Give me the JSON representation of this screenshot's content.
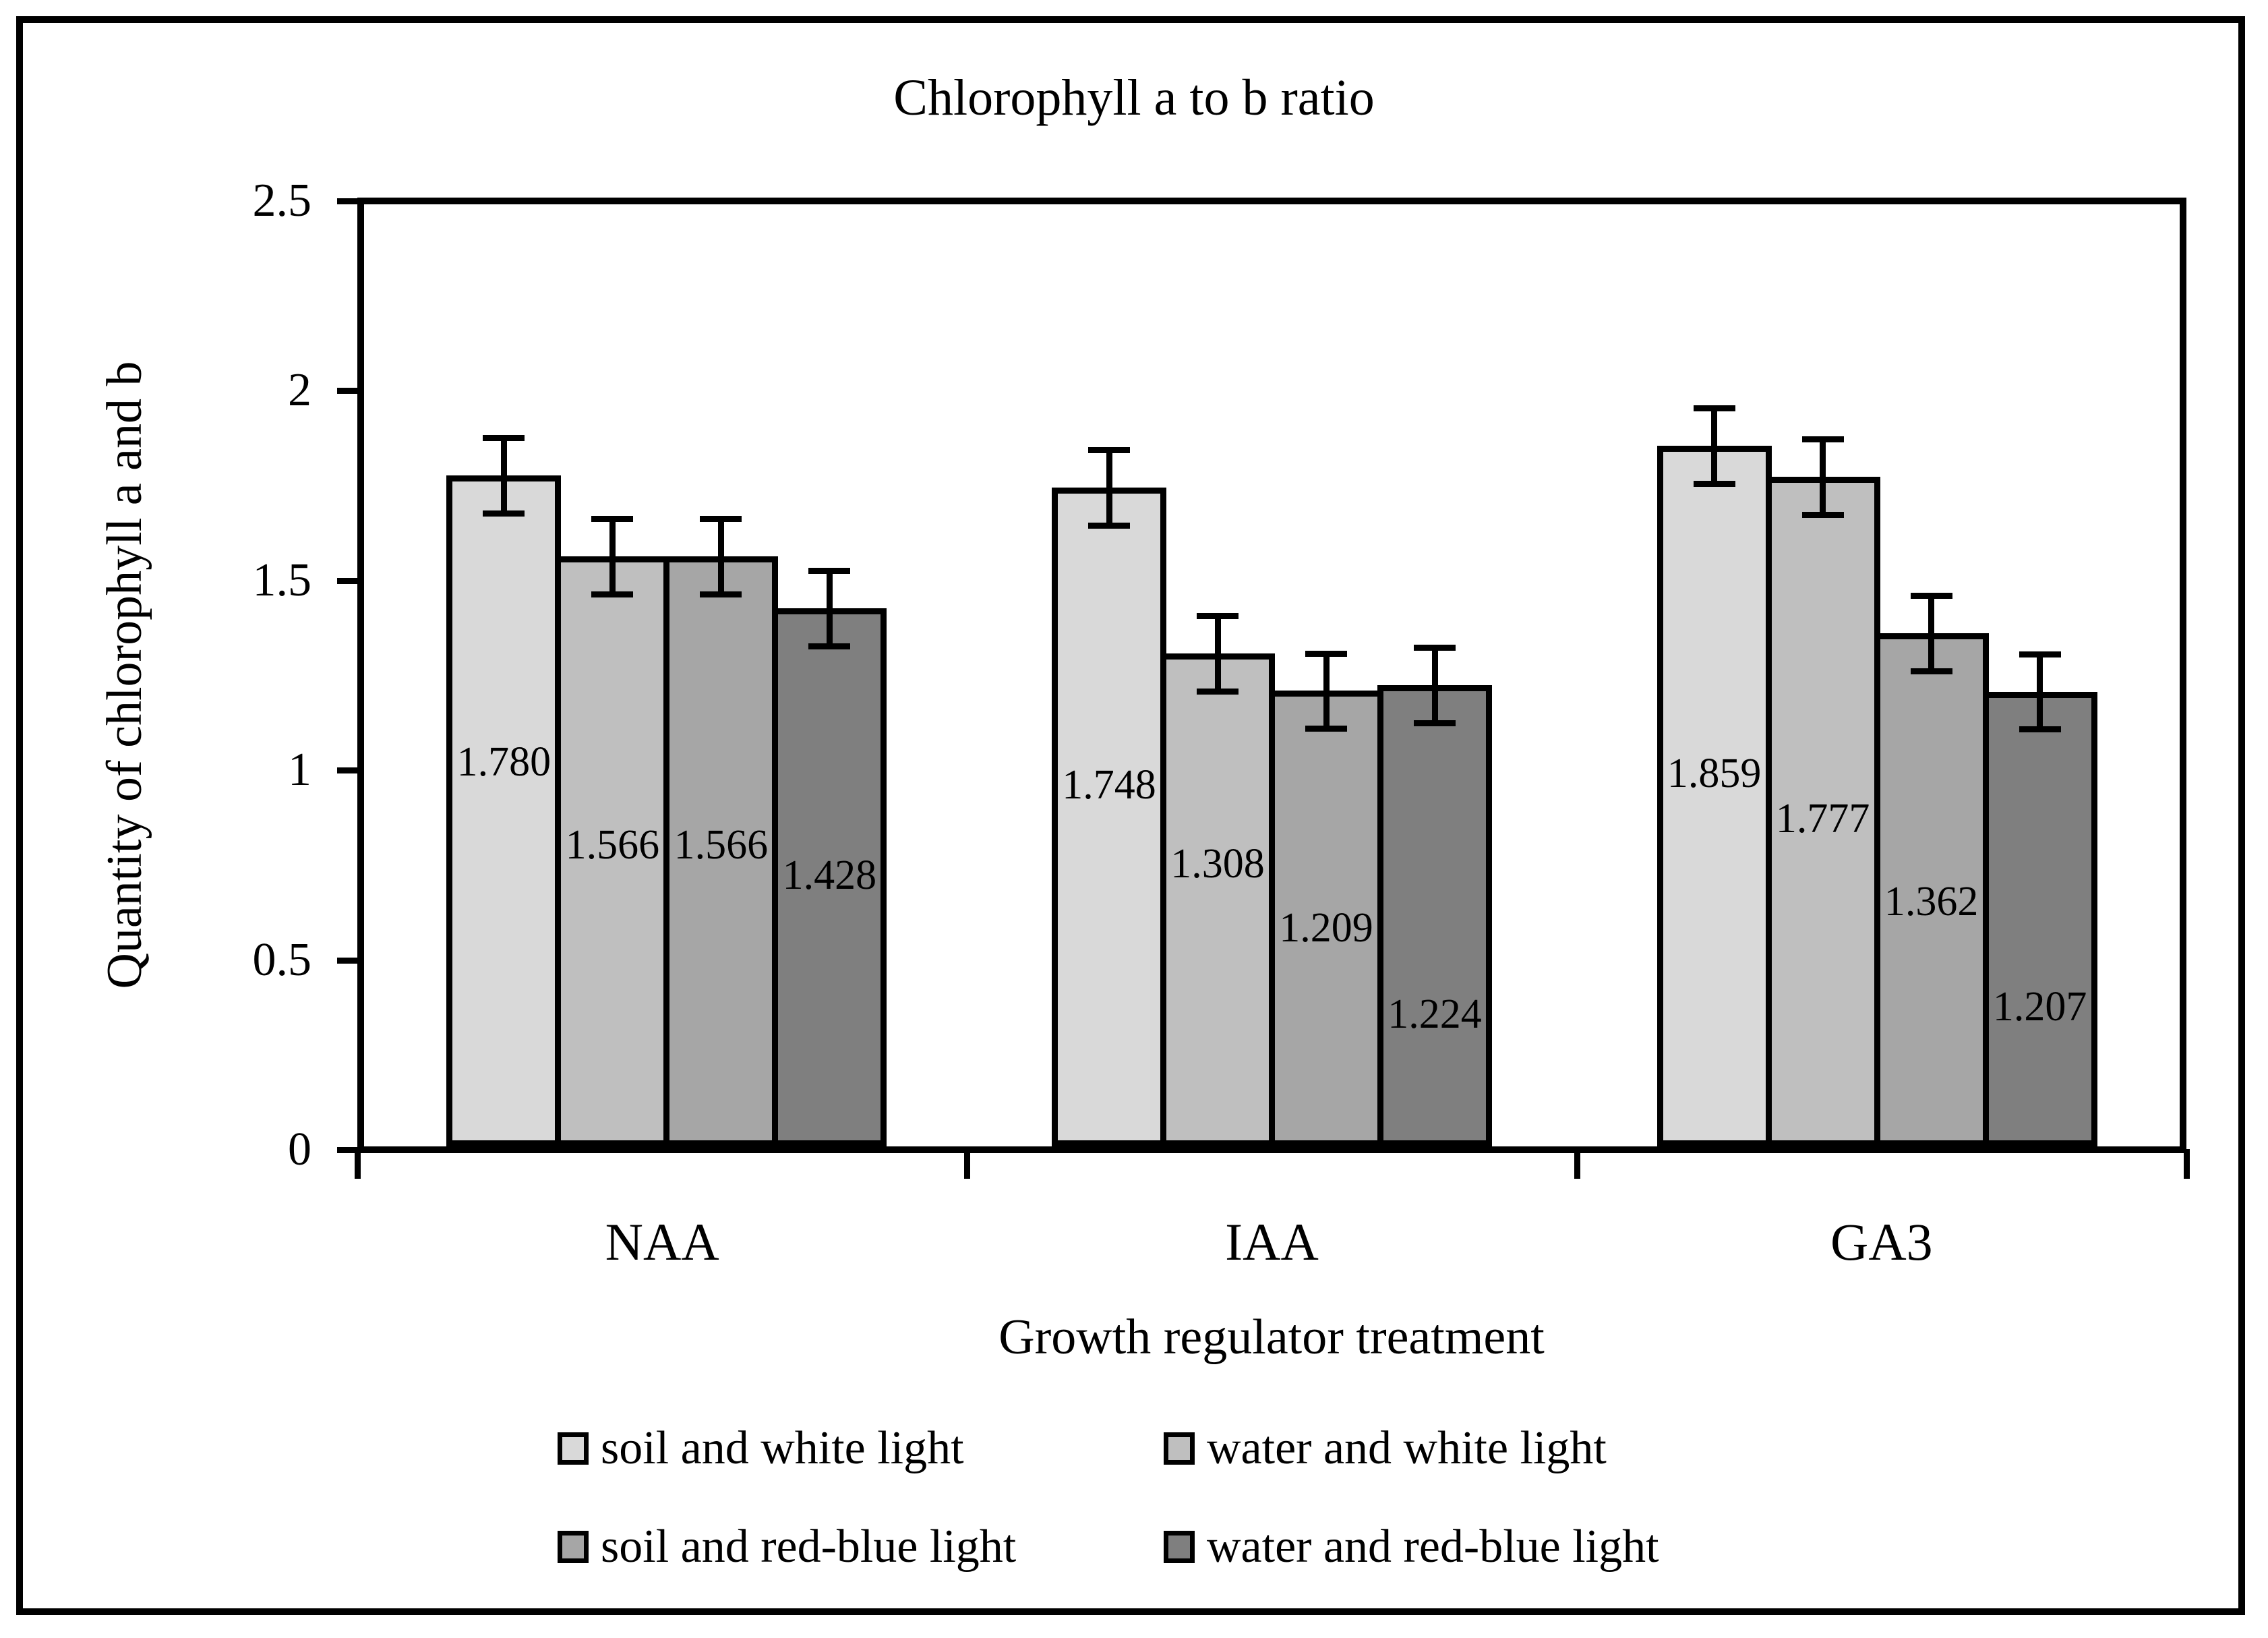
{
  "chart_data": {
    "type": "bar",
    "title": "Chlorophyll a to b ratio",
    "xlabel": "Growth regulator treatment",
    "ylabel": "Quantity of chlorophyll a and b",
    "categories": [
      "NAA",
      "IAA",
      "GA3"
    ],
    "series": [
      {
        "name": "soil and white light",
        "color": "#d9d9d9",
        "values": [
          1.78,
          1.748,
          1.859
        ],
        "errors": [
          0.1,
          0.1,
          0.1
        ]
      },
      {
        "name": "water and white light",
        "color": "#bfbfbf",
        "values": [
          1.566,
          1.308,
          1.777
        ],
        "errors": [
          0.1,
          0.1,
          0.1
        ]
      },
      {
        "name": "soil and red-blue light",
        "color": "#a6a6a6",
        "values": [
          1.566,
          1.209,
          1.362
        ],
        "errors": [
          0.1,
          0.1,
          0.1
        ]
      },
      {
        "name": "water and red-blue light",
        "color": "#7f7f7f",
        "values": [
          1.428,
          1.224,
          1.207
        ],
        "errors": [
          0.1,
          0.1,
          0.1
        ]
      }
    ],
    "data_labels": [
      [
        "1.780",
        "1.566",
        "1.566",
        "1.428"
      ],
      [
        "1.748",
        "1.308",
        "1.209",
        "1.224"
      ],
      [
        "1.859",
        "1.777",
        "1.362",
        "1.207"
      ]
    ],
    "data_label_center_axis_units": [
      [
        1.02,
        0.8,
        0.8,
        0.72
      ],
      [
        0.96,
        0.75,
        0.58,
        0.35
      ],
      [
        0.99,
        0.87,
        0.65,
        0.37
      ]
    ],
    "ylim": [
      0,
      2.5
    ],
    "y_ticks": [
      {
        "label": "0",
        "value": 0
      },
      {
        "label": "0.5",
        "value": 0.5
      },
      {
        "label": "1",
        "value": 1
      },
      {
        "label": "1.5",
        "value": 1.5
      },
      {
        "label": "2",
        "value": 2
      },
      {
        "label": "2.5",
        "value": 2.5
      }
    ],
    "grid": false,
    "legend_position": "bottom",
    "legend_columns": 2,
    "bar_outline_color": "#000000",
    "error_bar_color": "#000000",
    "text_color": "#000000",
    "background_color": "#ffffff"
  }
}
